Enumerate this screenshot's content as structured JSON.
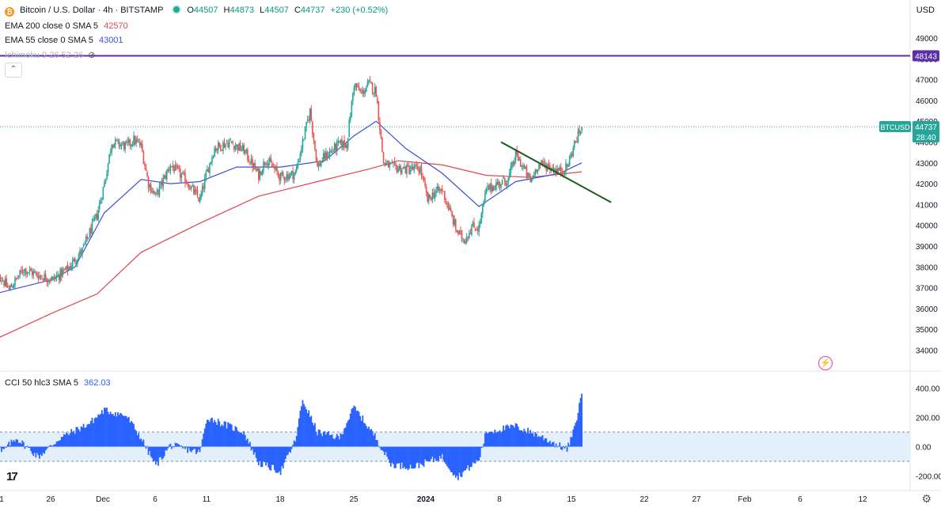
{
  "header": {
    "symbol": "Bitcoin / U.S. Dollar · 4h · BITSTAMP",
    "open_label": "O",
    "open": "44507",
    "high_label": "H",
    "high": "44873",
    "low_label": "L",
    "low": "44507",
    "close_label": "C",
    "close": "44737",
    "change": "+230 (+0.52%)"
  },
  "indicators": {
    "ema200_label": "EMA 200 close 0 SMA 5",
    "ema200_value": "42570",
    "ema55_label": "EMA 55 close 0 SMA 5",
    "ema55_value": "43001",
    "ichimoku_label": "Ichimoku 9 26 52 26"
  },
  "price_axis": {
    "currency": "USD",
    "ticks": [
      "49000",
      "48000",
      "47000",
      "46000",
      "45000",
      "44000",
      "43000",
      "42000",
      "41000",
      "40000",
      "39000",
      "38000",
      "37000",
      "36000",
      "35000",
      "34000"
    ],
    "hline_value": "48143",
    "last_symbol": "BTCUSD",
    "last_price": "44737",
    "countdown": "28:40"
  },
  "time_axis": {
    "labels": [
      "1",
      "26",
      "Dec",
      "6",
      "11",
      "18",
      "25",
      "2024",
      "8",
      "15",
      "22",
      "27",
      "Feb",
      "6",
      "12"
    ]
  },
  "cci": {
    "label": "CCI 50 hlc3 SMA 5",
    "value": "362.03",
    "ticks": [
      "400.00",
      "200.00",
      "0.00",
      "-200.00"
    ]
  },
  "colors": {
    "up": "#26a69a",
    "down": "#ef5350",
    "ema200": "#e0474c",
    "ema55": "#3b4fd6",
    "hline": "#5b2fa8",
    "trendline": "#1b5e20",
    "cci": "#2962ff",
    "cci_band": "#e3f0fb"
  },
  "chart_data": [
    {
      "type": "candlestick",
      "title": "Bitcoin / U.S. Dollar · 4h · BITSTAMP",
      "ylim": [
        33600,
        49700
      ],
      "y_scale": "linear",
      "grid": false,
      "anchors": [
        {
          "x": "Nov 20",
          "y": 38000
        },
        {
          "x": "Nov 22",
          "y": 36900
        },
        {
          "x": "Nov 24",
          "y": 37900
        },
        {
          "x": "Nov 26",
          "y": 37600
        },
        {
          "x": "Nov 28",
          "y": 37400
        },
        {
          "x": "Nov 30",
          "y": 37900
        },
        {
          "x": "Dec 2",
          "y": 38800
        },
        {
          "x": "Dec 4",
          "y": 40500
        },
        {
          "x": "Dec 5",
          "y": 42000
        },
        {
          "x": "Dec 6",
          "y": 44000
        },
        {
          "x": "Dec 8",
          "y": 43800
        },
        {
          "x": "Dec 9",
          "y": 44100
        },
        {
          "x": "Dec 10",
          "y": 43800
        },
        {
          "x": "Dec 11",
          "y": 42000
        },
        {
          "x": "Dec 12",
          "y": 41400
        },
        {
          "x": "Dec 14",
          "y": 42900
        },
        {
          "x": "Dec 16",
          "y": 42200
        },
        {
          "x": "Dec 18",
          "y": 41200
        },
        {
          "x": "Dec 19",
          "y": 42600
        },
        {
          "x": "Dec 20",
          "y": 43700
        },
        {
          "x": "Dec 22",
          "y": 44000
        },
        {
          "x": "Dec 24",
          "y": 43600
        },
        {
          "x": "Dec 26",
          "y": 42400
        },
        {
          "x": "Dec 27",
          "y": 43200
        },
        {
          "x": "Dec 29",
          "y": 42300
        },
        {
          "x": "Dec 31",
          "y": 42500
        },
        {
          "x": "Jan 1",
          "y": 44000
        },
        {
          "x": "Jan 2",
          "y": 45500
        },
        {
          "x": "Jan 3",
          "y": 42800
        },
        {
          "x": "Jan 4",
          "y": 43300
        },
        {
          "x": "Jan 6",
          "y": 43900
        },
        {
          "x": "Jan 7",
          "y": 43900
        },
        {
          "x": "Jan 8",
          "y": 46800
        },
        {
          "x": "Jan 9",
          "y": 46300
        },
        {
          "x": "Jan 10",
          "y": 46800
        },
        {
          "x": "Jan 11",
          "y": 46400
        },
        {
          "x": "Jan 12",
          "y": 43000
        },
        {
          "x": "Jan 13",
          "y": 42800
        },
        {
          "x": "Jan 15",
          "y": 42700
        },
        {
          "x": "Jan 17",
          "y": 42700
        },
        {
          "x": "Jan 18",
          "y": 41200
        },
        {
          "x": "Jan 19",
          "y": 41600
        },
        {
          "x": "Jan 20",
          "y": 41700
        },
        {
          "x": "Jan 22",
          "y": 39700
        },
        {
          "x": "Jan 23",
          "y": 39300
        },
        {
          "x": "Jan 24",
          "y": 39900
        },
        {
          "x": "Jan 25",
          "y": 39900
        },
        {
          "x": "Jan 26",
          "y": 41700
        },
        {
          "x": "Jan 27",
          "y": 41900
        },
        {
          "x": "Jan 29",
          "y": 42200
        },
        {
          "x": "Jan 30",
          "y": 43400
        },
        {
          "x": "Jan 31",
          "y": 42800
        },
        {
          "x": "Feb 1",
          "y": 42100
        },
        {
          "x": "Feb 2",
          "y": 42900
        },
        {
          "x": "Feb 3",
          "y": 42900
        },
        {
          "x": "Feb 5",
          "y": 42600
        },
        {
          "x": "Feb 6",
          "y": 42800
        },
        {
          "x": "Feb 7",
          "y": 43900
        },
        {
          "x": "Feb 8",
          "y": 44737
        }
      ],
      "series": [
        {
          "name": "EMA 200 close 0 SMA 5",
          "points": [
            {
              "x": "Nov 20",
              "y": 34500
            },
            {
              "x": "Nov 28",
              "y": 35800
            },
            {
              "x": "Dec 4",
              "y": 36700
            },
            {
              "x": "Dec 10",
              "y": 38700
            },
            {
              "x": "Dec 18",
              "y": 40100
            },
            {
              "x": "Dec 26",
              "y": 41400
            },
            {
              "x": "Jan 3",
              "y": 42100
            },
            {
              "x": "Jan 10",
              "y": 42700
            },
            {
              "x": "Jan 14",
              "y": 43100
            },
            {
              "x": "Jan 20",
              "y": 42900
            },
            {
              "x": "Jan 26",
              "y": 42400
            },
            {
              "x": "Feb 1",
              "y": 42300
            },
            {
              "x": "Feb 8",
              "y": 42570
            }
          ]
        },
        {
          "name": "EMA 55 close 0 SMA 5",
          "points": [
            {
              "x": "Nov 20",
              "y": 36700
            },
            {
              "x": "Nov 28",
              "y": 37400
            },
            {
              "x": "Dec 1",
              "y": 38000
            },
            {
              "x": "Dec 5",
              "y": 40600
            },
            {
              "x": "Dec 10",
              "y": 42200
            },
            {
              "x": "Dec 14",
              "y": 42000
            },
            {
              "x": "Dec 18",
              "y": 42100
            },
            {
              "x": "Dec 23",
              "y": 42800
            },
            {
              "x": "Dec 29",
              "y": 42800
            },
            {
              "x": "Jan 4",
              "y": 43100
            },
            {
              "x": "Jan 8",
              "y": 44300
            },
            {
              "x": "Jan 11",
              "y": 45000
            },
            {
              "x": "Jan 15",
              "y": 43700
            },
            {
              "x": "Jan 20",
              "y": 42500
            },
            {
              "x": "Jan 25",
              "y": 40900
            },
            {
              "x": "Jan 30",
              "y": 42100
            },
            {
              "x": "Feb 5",
              "y": 42500
            },
            {
              "x": "Feb 8",
              "y": 43001
            }
          ]
        }
      ],
      "horizontal_line": {
        "y": 48143
      },
      "trendline": [
        {
          "x": "Jan 28",
          "y": 44000
        },
        {
          "x": "Feb 12",
          "y": 41100
        }
      ],
      "last_price": 44737
    },
    {
      "type": "bar",
      "title": "CCI 50 hlc3 SMA 5",
      "ylim": [
        -240,
        460
      ],
      "levels": [
        100,
        -100
      ],
      "anchors": [
        {
          "x": "Nov 20",
          "y": 100
        },
        {
          "x": "Nov 21",
          "y": -40
        },
        {
          "x": "Nov 23",
          "y": 60
        },
        {
          "x": "Nov 26",
          "y": -70
        },
        {
          "x": "Nov 29",
          "y": 60
        },
        {
          "x": "Dec 3",
          "y": 160
        },
        {
          "x": "Dec 5",
          "y": 250
        },
        {
          "x": "Dec 8",
          "y": 210
        },
        {
          "x": "Dec 10",
          "y": 60
        },
        {
          "x": "Dec 12",
          "y": -130
        },
        {
          "x": "Dec 14",
          "y": 10
        },
        {
          "x": "Dec 18",
          "y": -40
        },
        {
          "x": "Dec 19",
          "y": 200
        },
        {
          "x": "Dec 24",
          "y": 100
        },
        {
          "x": "Dec 26",
          "y": -110
        },
        {
          "x": "Dec 29",
          "y": -170
        },
        {
          "x": "Dec 31",
          "y": 40
        },
        {
          "x": "Jan 1",
          "y": 320
        },
        {
          "x": "Jan 3",
          "y": 100
        },
        {
          "x": "Jan 6",
          "y": 60
        },
        {
          "x": "Jan 8",
          "y": 270
        },
        {
          "x": "Jan 11",
          "y": 60
        },
        {
          "x": "Jan 13",
          "y": -120
        },
        {
          "x": "Jan 16",
          "y": -140
        },
        {
          "x": "Jan 20",
          "y": -70
        },
        {
          "x": "Jan 22",
          "y": -210
        },
        {
          "x": "Jan 25",
          "y": -90
        },
        {
          "x": "Jan 26",
          "y": 100
        },
        {
          "x": "Jan 30",
          "y": 140
        },
        {
          "x": "Feb 2",
          "y": 80
        },
        {
          "x": "Feb 6",
          "y": -20
        },
        {
          "x": "Feb 7",
          "y": 120
        },
        {
          "x": "Feb 8",
          "y": 362.03
        }
      ]
    }
  ]
}
